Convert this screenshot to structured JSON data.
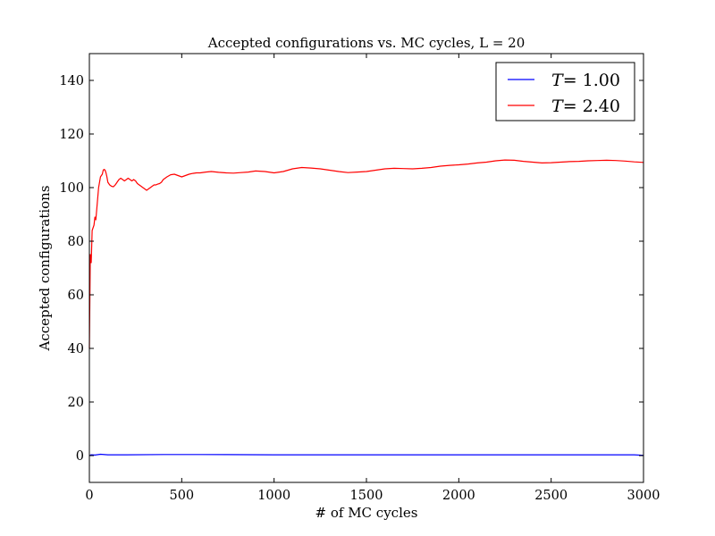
{
  "chart_data": {
    "type": "line",
    "title": "Accepted configurations vs. MC cycles, L = 20",
    "xlabel": "# of MC cycles",
    "ylabel": "Accepted configurations",
    "xlim": [
      0,
      3000
    ],
    "ylim": [
      -10,
      150
    ],
    "xticks": [
      0,
      500,
      1000,
      1500,
      2000,
      2500,
      3000
    ],
    "yticks": [
      0,
      20,
      40,
      60,
      80,
      100,
      120,
      140
    ],
    "grid": false,
    "legend_position": "top-right",
    "series": [
      {
        "name_var": "T",
        "name_value": "= 1.00",
        "color": "#0000ff",
        "x": [
          0,
          10,
          30,
          60,
          100,
          200,
          400,
          600,
          1000,
          1500,
          2000,
          2500,
          2950,
          3000
        ],
        "y": [
          0,
          0.3,
          0.2,
          0.5,
          0.3,
          0.3,
          0.4,
          0.4,
          0.3,
          0.3,
          0.3,
          0.3,
          0.3,
          0.1
        ]
      },
      {
        "name_var": "T",
        "name_value": "= 2.40",
        "color": "#ff0000",
        "x": [
          0,
          5,
          10,
          15,
          20,
          25,
          30,
          35,
          40,
          45,
          50,
          55,
          60,
          65,
          70,
          75,
          80,
          85,
          90,
          95,
          100,
          110,
          120,
          130,
          140,
          150,
          160,
          170,
          180,
          190,
          200,
          210,
          220,
          230,
          240,
          250,
          260,
          270,
          280,
          290,
          300,
          310,
          320,
          330,
          340,
          350,
          360,
          370,
          380,
          390,
          400,
          420,
          440,
          460,
          480,
          500,
          520,
          540,
          560,
          580,
          600,
          630,
          660,
          700,
          740,
          780,
          820,
          860,
          900,
          950,
          1000,
          1050,
          1100,
          1150,
          1200,
          1250,
          1300,
          1350,
          1400,
          1450,
          1500,
          1550,
          1600,
          1650,
          1700,
          1750,
          1800,
          1850,
          1900,
          1950,
          2000,
          2050,
          2100,
          2150,
          2200,
          2250,
          2300,
          2350,
          2400,
          2450,
          2500,
          2550,
          2600,
          2650,
          2700,
          2750,
          2800,
          2850,
          2900,
          2950,
          3000
        ],
        "y": [
          40,
          75,
          72,
          84,
          85,
          86,
          89,
          88,
          92,
          96,
          100,
          102,
          104,
          104.5,
          105,
          106.5,
          106.8,
          106.5,
          105.5,
          104,
          102,
          101,
          100.5,
          100.3,
          101,
          102,
          103,
          103.5,
          103,
          102.5,
          103,
          103.5,
          103,
          102.5,
          103,
          102.5,
          101.5,
          101,
          100.5,
          100,
          99.5,
          99,
          99.5,
          100,
          100.5,
          101,
          101,
          101.3,
          101.5,
          102,
          103,
          104,
          104.8,
          105,
          104.5,
          104,
          104.5,
          105,
          105.3,
          105.5,
          105.5,
          105.8,
          106,
          105.7,
          105.5,
          105.4,
          105.6,
          105.8,
          106.2,
          106,
          105.5,
          106,
          107,
          107.5,
          107.3,
          107,
          106.5,
          106,
          105.6,
          105.8,
          106,
          106.5,
          107,
          107.2,
          107.1,
          107,
          107.2,
          107.5,
          108,
          108.3,
          108.5,
          108.8,
          109.2,
          109.5,
          110,
          110.3,
          110.2,
          109.8,
          109.5,
          109.2,
          109.3,
          109.5,
          109.7,
          109.8,
          110,
          110.1,
          110.2,
          110.1,
          109.9,
          109.6,
          109.4
        ]
      }
    ]
  }
}
